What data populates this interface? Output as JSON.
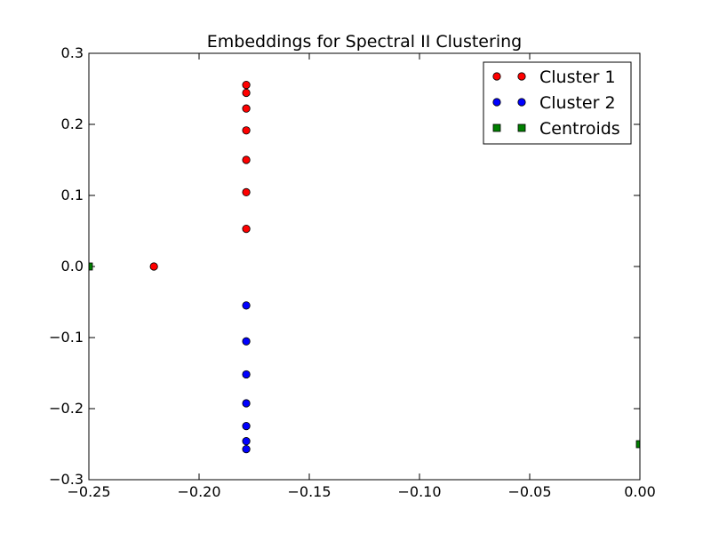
{
  "chart_data": {
    "type": "scatter",
    "title": "Embeddings for Spectral II Clustering",
    "xlabel": "",
    "ylabel": "",
    "xlim": [
      -0.25,
      0.0
    ],
    "ylim": [
      -0.3,
      0.3
    ],
    "x_ticks": [
      -0.25,
      -0.2,
      -0.15,
      -0.1,
      -0.05,
      0.0
    ],
    "x_tick_labels": [
      "−0.25",
      "−0.20",
      "−0.15",
      "−0.10",
      "−0.05",
      "0.00"
    ],
    "y_ticks": [
      0.3,
      0.2,
      0.1,
      0.0,
      -0.1,
      -0.2,
      -0.3
    ],
    "y_tick_labels": [
      "0.3",
      "0.2",
      "0.1",
      "0.0",
      "−0.1",
      "−0.2",
      "−0.3"
    ],
    "grid": false,
    "legend_position": "top-right",
    "series": [
      {
        "name": "Cluster 1",
        "marker": "circle",
        "color": "#ff0000",
        "points": [
          [
            -0.1786,
            0.2555
          ],
          [
            -0.1786,
            0.2444
          ],
          [
            -0.1786,
            0.2223
          ],
          [
            -0.1786,
            0.1915
          ],
          [
            -0.1786,
            0.15
          ],
          [
            -0.1786,
            0.1045
          ],
          [
            -0.1786,
            0.053
          ],
          [
            -0.2205,
            0.0
          ]
        ]
      },
      {
        "name": "Cluster 2",
        "marker": "circle",
        "color": "#0000ff",
        "points": [
          [
            -0.1786,
            -0.0548
          ],
          [
            -0.1786,
            -0.1053
          ],
          [
            -0.1786,
            -0.1518
          ],
          [
            -0.1786,
            -0.1925
          ],
          [
            -0.1786,
            -0.2245
          ],
          [
            -0.1786,
            -0.2458
          ],
          [
            -0.1786,
            -0.257
          ]
        ]
      },
      {
        "name": "Centroids",
        "marker": "square",
        "color": "#008000",
        "points": [
          [
            -0.25,
            0.0
          ],
          [
            0.0,
            -0.25
          ]
        ]
      }
    ]
  }
}
